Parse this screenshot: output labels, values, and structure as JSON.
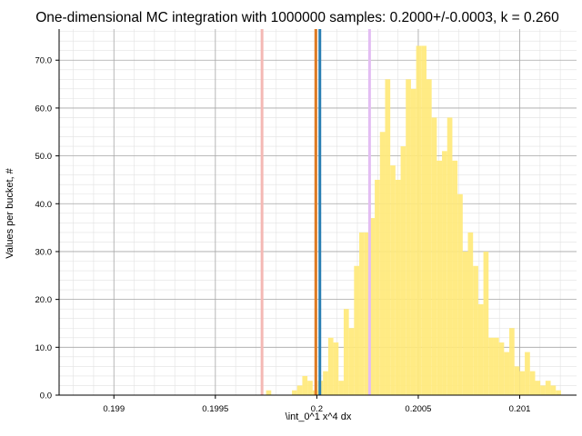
{
  "chart_data": {
    "type": "bar",
    "title": "One-dimensional MC integration with 1000000 samples: 0.2000+/-0.0003, k = 0.260",
    "xlabel": "\\int_0^1 x^4 dx",
    "ylabel": "Values per bucket, #",
    "xlim": [
      0.19873,
      0.20128
    ],
    "ylim": [
      0,
      76.5
    ],
    "x_ticks": [
      {
        "value": 0.199,
        "label": "0.199"
      },
      {
        "value": 0.1995,
        "label": "0.1995"
      },
      {
        "value": 0.2,
        "label": "0.2"
      },
      {
        "value": 0.2005,
        "label": "0.2005"
      },
      {
        "value": 0.201,
        "label": "0.201"
      }
    ],
    "y_ticks": [
      {
        "value": 0,
        "label": "0.0"
      },
      {
        "value": 10,
        "label": "10.0"
      },
      {
        "value": 20,
        "label": "20.0"
      },
      {
        "value": 30,
        "label": "30.0"
      },
      {
        "value": 40,
        "label": "40.0"
      },
      {
        "value": 50,
        "label": "50.0"
      },
      {
        "value": 60,
        "label": "60.0"
      },
      {
        "value": 70,
        "label": "70.0"
      }
    ],
    "grid": true,
    "bar_color": "#ffe97a",
    "bin_edges_start": 0.19873,
    "bin_width": 2.55e-05,
    "values": [
      0,
      0,
      0,
      0,
      0,
      0,
      0,
      0,
      0,
      0,
      0,
      0,
      0,
      0,
      0,
      0,
      0,
      0,
      0,
      0,
      0,
      0,
      0,
      0,
      0,
      0,
      0,
      0,
      0,
      0,
      0,
      0,
      0,
      0,
      0,
      0,
      0,
      0,
      0,
      0,
      1,
      0,
      0,
      0,
      0,
      1,
      2,
      4,
      3,
      1,
      3,
      5,
      12,
      11,
      3,
      18,
      14,
      27,
      34,
      34,
      37,
      45,
      55,
      66,
      48,
      45,
      52,
      66,
      64,
      73,
      73,
      66,
      58,
      49,
      51,
      58,
      49,
      42,
      30,
      34,
      27,
      19,
      30,
      12,
      12,
      11,
      9,
      14,
      6,
      5,
      9,
      5,
      3,
      2,
      3,
      2,
      1,
      0,
      0,
      0,
      0,
      0,
      0,
      0,
      0,
      0,
      0,
      0,
      0,
      0,
      0,
      0,
      0,
      0,
      0,
      0,
      0,
      0,
      0,
      0,
      0,
      0,
      0,
      0,
      0,
      0,
      0,
      0,
      0,
      0,
      0,
      0,
      0,
      0,
      0,
      0,
      0,
      0,
      0,
      0
    ],
    "vertical_lines": [
      {
        "x": 0.19973,
        "color": "#f4b8b4"
      },
      {
        "x": 0.20026,
        "color": "#e3bdf3"
      },
      {
        "x": 0.199995,
        "color": "#e07b22"
      },
      {
        "x": 0.200015,
        "color": "#2a7fb3"
      }
    ]
  }
}
